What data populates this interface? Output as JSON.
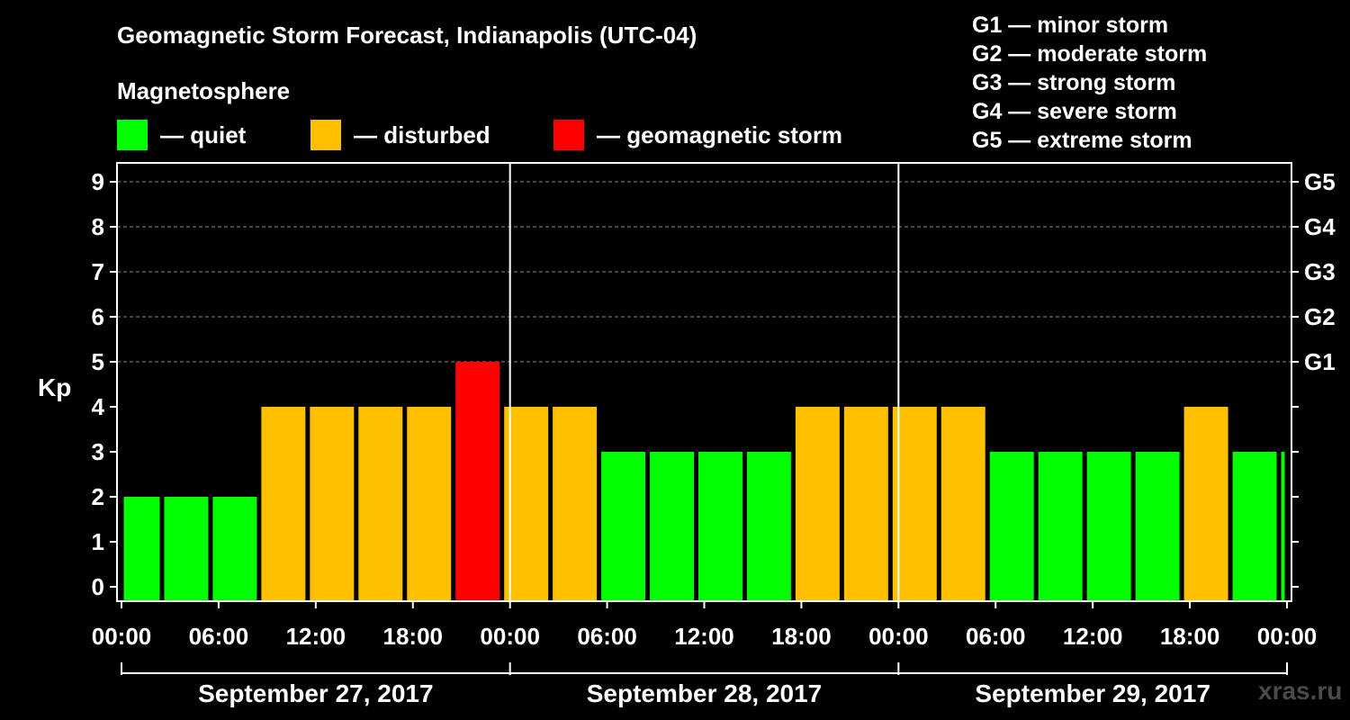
{
  "header": {
    "title": "Geomagnetic Storm Forecast, Indianapolis (UTC-04)",
    "magnetosphere_label": "Magnetosphere",
    "legend": [
      {
        "label": "— quiet",
        "color": "#00ff00"
      },
      {
        "label": "— disturbed",
        "color": "#ffc000"
      },
      {
        "label": "— geomagnetic storm",
        "color": "#ff0000"
      }
    ],
    "storm_scale": [
      "G1 — minor storm",
      "G2 — moderate storm",
      "G3 — strong storm",
      "G4 — severe storm",
      "G5 — extreme storm"
    ]
  },
  "watermark": "xras.ru",
  "chart_data": {
    "type": "bar",
    "ylabel": "Kp",
    "ylim": [
      0,
      9
    ],
    "y_ticks": [
      0,
      1,
      2,
      3,
      4,
      5,
      6,
      7,
      8,
      9
    ],
    "right_axis_labels": [
      {
        "kp": 5,
        "label": "G1"
      },
      {
        "kp": 6,
        "label": "G2"
      },
      {
        "kp": 7,
        "label": "G3"
      },
      {
        "kp": 8,
        "label": "G4"
      },
      {
        "kp": 9,
        "label": "G5"
      }
    ],
    "x_tick_labels": [
      "00:00",
      "06:00",
      "12:00",
      "18:00",
      "00:00",
      "06:00",
      "12:00",
      "18:00",
      "00:00",
      "06:00",
      "12:00",
      "18:00",
      "00:00"
    ],
    "dates": [
      "September 27, 2017",
      "September 28, 2017",
      "September 29, 2017"
    ],
    "grid": "dashed horizontal lines at Kp 5–9",
    "colors": {
      "quiet": "#00ff00",
      "disturbed": "#ffc000",
      "storm": "#ff0000"
    },
    "bars": [
      {
        "start_hour": 0,
        "end_hour": 2.5,
        "kp": 2,
        "status": "quiet"
      },
      {
        "start_hour": 2.5,
        "end_hour": 5.5,
        "kp": 2,
        "status": "quiet"
      },
      {
        "start_hour": 5.5,
        "end_hour": 8.5,
        "kp": 2,
        "status": "quiet"
      },
      {
        "start_hour": 8.5,
        "end_hour": 11.5,
        "kp": 4,
        "status": "disturbed"
      },
      {
        "start_hour": 11.5,
        "end_hour": 14.5,
        "kp": 4,
        "status": "disturbed"
      },
      {
        "start_hour": 14.5,
        "end_hour": 17.5,
        "kp": 4,
        "status": "disturbed"
      },
      {
        "start_hour": 17.5,
        "end_hour": 20.5,
        "kp": 4,
        "status": "disturbed"
      },
      {
        "start_hour": 20.5,
        "end_hour": 23.5,
        "kp": 5,
        "status": "storm"
      },
      {
        "start_hour": 23.5,
        "end_hour": 26.5,
        "kp": 4,
        "status": "disturbed"
      },
      {
        "start_hour": 26.5,
        "end_hour": 29.5,
        "kp": 4,
        "status": "disturbed"
      },
      {
        "start_hour": 29.5,
        "end_hour": 32.5,
        "kp": 3,
        "status": "quiet"
      },
      {
        "start_hour": 32.5,
        "end_hour": 35.5,
        "kp": 3,
        "status": "quiet"
      },
      {
        "start_hour": 35.5,
        "end_hour": 38.5,
        "kp": 3,
        "status": "quiet"
      },
      {
        "start_hour": 38.5,
        "end_hour": 41.5,
        "kp": 3,
        "status": "quiet"
      },
      {
        "start_hour": 41.5,
        "end_hour": 44.5,
        "kp": 4,
        "status": "disturbed"
      },
      {
        "start_hour": 44.5,
        "end_hour": 47.5,
        "kp": 4,
        "status": "disturbed"
      },
      {
        "start_hour": 47.5,
        "end_hour": 50.5,
        "kp": 4,
        "status": "disturbed"
      },
      {
        "start_hour": 50.5,
        "end_hour": 53.5,
        "kp": 4,
        "status": "disturbed"
      },
      {
        "start_hour": 53.5,
        "end_hour": 56.5,
        "kp": 3,
        "status": "quiet"
      },
      {
        "start_hour": 56.5,
        "end_hour": 59.5,
        "kp": 3,
        "status": "quiet"
      },
      {
        "start_hour": 59.5,
        "end_hour": 62.5,
        "kp": 3,
        "status": "quiet"
      },
      {
        "start_hour": 62.5,
        "end_hour": 65.5,
        "kp": 3,
        "status": "quiet"
      },
      {
        "start_hour": 65.5,
        "end_hour": 68.5,
        "kp": 4,
        "status": "disturbed"
      },
      {
        "start_hour": 68.5,
        "end_hour": 71.5,
        "kp": 3,
        "status": "quiet"
      },
      {
        "start_hour": 71.5,
        "end_hour": 72,
        "kp": 3,
        "status": "quiet"
      }
    ]
  }
}
